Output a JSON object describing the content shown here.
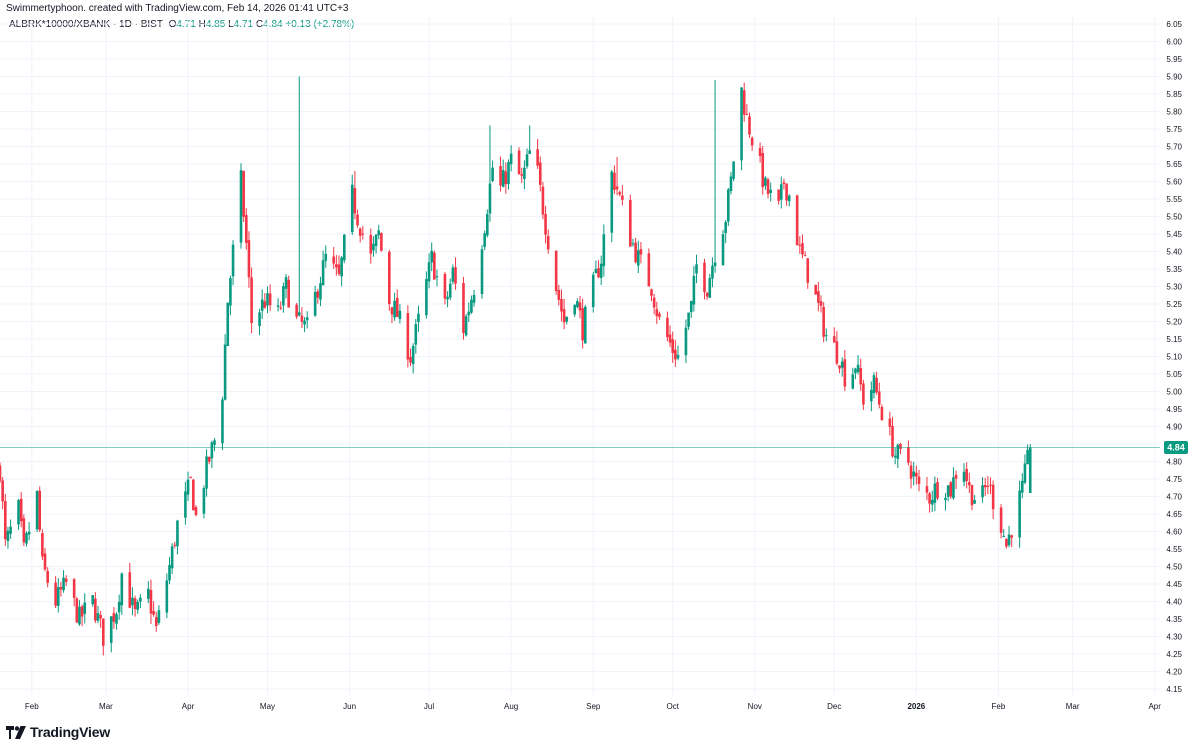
{
  "header": {
    "credit": "Swimmertyphoon. created with TradingView.com, Feb 14, 2026 01:41 UTC+3"
  },
  "legend": {
    "symbol": "ALBRK*10000/XBANK · 1D · BIST",
    "o_label": "O",
    "o_value": "4.71",
    "h_label": "H",
    "h_value": "4.85",
    "l_label": "L",
    "l_value": "4.71",
    "c_label": "C",
    "c_value": "4.84",
    "change": "+0.13 (+2.78%)"
  },
  "footer": {
    "brand": "TradingView"
  },
  "colors": {
    "up": "#089981",
    "down": "#f23645",
    "price_line": "#089981",
    "grid": "#f0f3fa",
    "axis_text": "#131722"
  },
  "chart_data": {
    "type": "candlestick",
    "last_price": 4.84,
    "last_price_label": "4.84",
    "y_ticks": [
      "4.15",
      "4.20",
      "4.25",
      "4.30",
      "4.35",
      "4.40",
      "4.45",
      "4.50",
      "4.55",
      "4.60",
      "4.65",
      "4.70",
      "4.75",
      "4.80",
      "4.85",
      "4.90",
      "4.95",
      "5.00",
      "5.05",
      "5.10",
      "5.15",
      "5.20",
      "5.25",
      "5.30",
      "5.35",
      "5.40",
      "5.45",
      "5.50",
      "5.55",
      "5.60",
      "5.65",
      "5.70",
      "5.75",
      "5.80",
      "5.85",
      "5.90",
      "5.95",
      "6.00",
      "6.05"
    ],
    "ylim": [
      4.13,
      6.07
    ],
    "x_labels": [
      {
        "label": "Feb",
        "date": "2025-02-01"
      },
      {
        "label": "Mar",
        "date": "2025-03-01"
      },
      {
        "label": "Apr",
        "date": "2025-04-01"
      },
      {
        "label": "May",
        "date": "2025-05-01"
      },
      {
        "label": "Jun",
        "date": "2025-06-01"
      },
      {
        "label": "Jul",
        "date": "2025-07-01"
      },
      {
        "label": "Aug",
        "date": "2025-08-01"
      },
      {
        "label": "Sep",
        "date": "2025-09-01"
      },
      {
        "label": "Oct",
        "date": "2025-10-01"
      },
      {
        "label": "Nov",
        "date": "2025-11-01"
      },
      {
        "label": "Dec",
        "date": "2025-12-01"
      },
      {
        "label": "2026",
        "date": "2026-01-01",
        "bold": true
      },
      {
        "label": "Feb",
        "date": "2026-02-01"
      },
      {
        "label": "Mar",
        "date": "2026-03-01"
      },
      {
        "label": "Apr",
        "date": "2026-04-01"
      }
    ],
    "xlim": [
      "2025-01-20",
      "2026-04-03"
    ],
    "anchors": [
      [
        "2025-01-20",
        4.78
      ],
      [
        "2025-01-22",
        4.56
      ],
      [
        "2025-01-27",
        4.66
      ],
      [
        "2025-01-29",
        4.54
      ],
      [
        "2025-02-03",
        4.7
      ],
      [
        "2025-02-05",
        4.5
      ],
      [
        "2025-02-10",
        4.4
      ],
      [
        "2025-02-14",
        4.45
      ],
      [
        "2025-02-19",
        4.35
      ],
      [
        "2025-02-24",
        4.4
      ],
      [
        "2025-02-28",
        4.3
      ],
      [
        "2025-03-05",
        4.38
      ],
      [
        "2025-03-07",
        4.48
      ],
      [
        "2025-03-12",
        4.36
      ],
      [
        "2025-03-17",
        4.42
      ],
      [
        "2025-03-20",
        4.32
      ],
      [
        "2025-03-25",
        4.5
      ],
      [
        "2025-03-28",
        4.62
      ],
      [
        "2025-04-02",
        4.74
      ],
      [
        "2025-04-04",
        4.64
      ],
      [
        "2025-04-08",
        4.78
      ],
      [
        "2025-04-11",
        4.86
      ],
      [
        "2025-04-14",
        5.0
      ],
      [
        "2025-04-16",
        5.26
      ],
      [
        "2025-04-18",
        5.4
      ],
      [
        "2025-04-21",
        5.6
      ],
      [
        "2025-04-23",
        5.42
      ],
      [
        "2025-04-25",
        5.2
      ],
      [
        "2025-04-30",
        5.26
      ],
      [
        "2025-05-05",
        5.22
      ],
      [
        "2025-05-08",
        5.3
      ],
      [
        "2025-05-12",
        5.2
      ],
      [
        "2025-05-16",
        5.18
      ],
      [
        "2025-05-20",
        5.3
      ],
      [
        "2025-05-23",
        5.38
      ],
      [
        "2025-05-28",
        5.32
      ],
      [
        "2025-06-02",
        5.56
      ],
      [
        "2025-06-04",
        5.5
      ],
      [
        "2025-06-09",
        5.38
      ],
      [
        "2025-06-12",
        5.45
      ],
      [
        "2025-06-16",
        5.26
      ],
      [
        "2025-06-19",
        5.22
      ],
      [
        "2025-06-24",
        5.1
      ],
      [
        "2025-06-27",
        5.2
      ],
      [
        "2025-07-02",
        5.38
      ],
      [
        "2025-07-07",
        5.24
      ],
      [
        "2025-07-10",
        5.34
      ],
      [
        "2025-07-14",
        5.18
      ],
      [
        "2025-07-18",
        5.3
      ],
      [
        "2025-07-22",
        5.48
      ],
      [
        "2025-07-25",
        5.64
      ],
      [
        "2025-07-28",
        5.58
      ],
      [
        "2025-08-01",
        5.66
      ],
      [
        "2025-08-05",
        5.6
      ],
      [
        "2025-08-08",
        5.68
      ],
      [
        "2025-08-11",
        5.62
      ],
      [
        "2025-08-14",
        5.48
      ],
      [
        "2025-08-18",
        5.3
      ],
      [
        "2025-08-21",
        5.2
      ],
      [
        "2025-08-25",
        5.28
      ],
      [
        "2025-08-28",
        5.18
      ],
      [
        "2025-09-01",
        5.3
      ],
      [
        "2025-09-04",
        5.38
      ],
      [
        "2025-09-08",
        5.62
      ],
      [
        "2025-09-10",
        5.58
      ],
      [
        "2025-09-15",
        5.44
      ],
      [
        "2025-09-18",
        5.38
      ],
      [
        "2025-09-23",
        5.3
      ],
      [
        "2025-09-26",
        5.2
      ],
      [
        "2025-10-01",
        5.12
      ],
      [
        "2025-10-03",
        5.1
      ],
      [
        "2025-10-08",
        5.24
      ],
      [
        "2025-10-10",
        5.36
      ],
      [
        "2025-10-14",
        5.3
      ],
      [
        "2025-10-17",
        5.4
      ],
      [
        "2025-10-21",
        5.5
      ],
      [
        "2025-10-23",
        5.6
      ],
      [
        "2025-10-27",
        5.86
      ],
      [
        "2025-10-29",
        5.78
      ],
      [
        "2025-11-03",
        5.64
      ],
      [
        "2025-11-05",
        5.58
      ],
      [
        "2025-11-10",
        5.52
      ],
      [
        "2025-11-12",
        5.6
      ],
      [
        "2025-11-14",
        5.56
      ],
      [
        "2025-11-18",
        5.4
      ],
      [
        "2025-11-21",
        5.34
      ],
      [
        "2025-11-25",
        5.24
      ],
      [
        "2025-11-28",
        5.16
      ],
      [
        "2025-12-03",
        5.1
      ],
      [
        "2025-12-06",
        5.02
      ],
      [
        "2025-12-09",
        5.08
      ],
      [
        "2025-12-12",
        4.98
      ],
      [
        "2025-12-16",
        5.02
      ],
      [
        "2025-12-20",
        4.92
      ],
      [
        "2025-12-24",
        4.82
      ],
      [
        "2025-12-29",
        4.8
      ],
      [
        "2026-01-02",
        4.72
      ],
      [
        "2026-01-06",
        4.7
      ],
      [
        "2026-01-10",
        4.74
      ],
      [
        "2026-01-14",
        4.72
      ],
      [
        "2026-01-18",
        4.82
      ],
      [
        "2026-01-21",
        4.72
      ],
      [
        "2026-01-25",
        4.68
      ],
      [
        "2026-01-28",
        4.74
      ],
      [
        "2026-02-02",
        4.62
      ],
      [
        "2026-02-04",
        4.56
      ],
      [
        "2026-02-07",
        4.64
      ],
      [
        "2026-02-10",
        4.72
      ],
      [
        "2026-02-13",
        4.84
      ]
    ],
    "spikes": [
      {
        "date": "2025-05-13",
        "high": 5.9
      },
      {
        "date": "2025-10-17",
        "high": 5.89
      },
      {
        "date": "2025-08-08",
        "high": 5.76
      },
      {
        "date": "2025-07-24",
        "high": 5.76
      },
      {
        "date": "2025-09-10",
        "high": 5.67
      },
      {
        "date": "2025-06-03",
        "high": 5.63
      },
      {
        "date": "2025-04-22",
        "high": 5.63
      }
    ],
    "last_candle": {
      "date": "2026-02-13",
      "open": 4.71,
      "high": 4.85,
      "low": 4.71,
      "close": 4.84
    }
  }
}
